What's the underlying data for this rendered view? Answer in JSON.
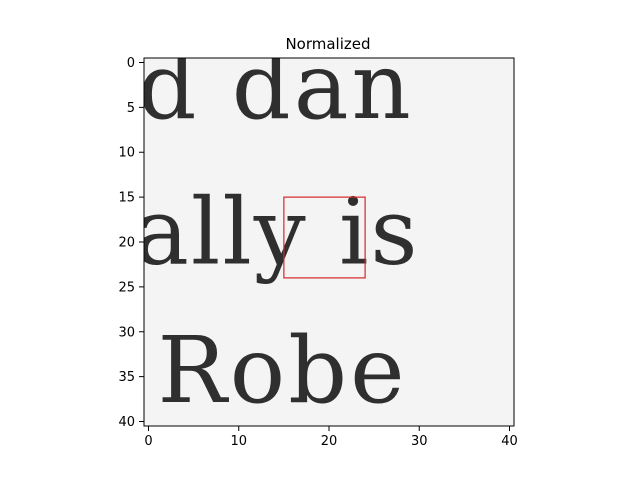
{
  "chart_data": {
    "type": "image",
    "title": "Normalized",
    "xlabel": "",
    "ylabel": "",
    "xlim": [
      -0.5,
      40.5
    ],
    "ylim": [
      40.5,
      -0.5
    ],
    "x_ticks": [
      0,
      10,
      20,
      30,
      40
    ],
    "y_ticks": [
      0,
      5,
      10,
      15,
      20,
      25,
      30,
      35,
      40
    ],
    "colormap": "gray",
    "background_color": "#f4f4f4",
    "ink_color": "#1a1a1a",
    "image_text_fragments": [
      {
        "text": "d dan",
        "row": 1
      },
      {
        "text": "ally is",
        "row": 2
      },
      {
        "text": "Robe",
        "row": 3
      }
    ],
    "annotations": [
      {
        "type": "rectangle",
        "x0": 15,
        "y0": 15,
        "x1": 24,
        "y1": 24,
        "color": "#d62728"
      }
    ]
  }
}
